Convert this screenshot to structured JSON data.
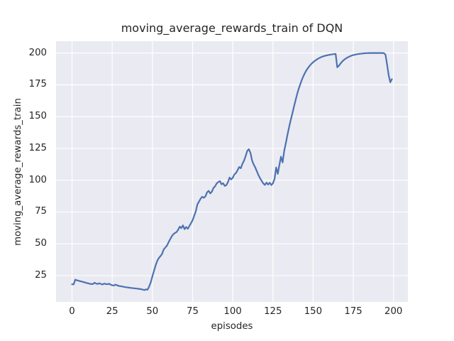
{
  "chart_data": {
    "type": "line",
    "title": "moving_average_rewards_train of DQN",
    "xlabel": "episodes",
    "ylabel": "moving_average_rewards_train",
    "x_ticks": [
      0,
      25,
      50,
      75,
      100,
      125,
      150,
      175,
      200
    ],
    "y_ticks": [
      25,
      50,
      75,
      100,
      125,
      150,
      175,
      200
    ],
    "xlim": [
      -9.95,
      208.95
    ],
    "ylim": [
      4.3,
      209.3
    ],
    "grid": true,
    "legend": null,
    "plot_bg_color": "#eaeaf2",
    "grid_color": "#ffffff",
    "line_color": "#4c72b0",
    "text_color": "#262626",
    "series": [
      {
        "name": "moving_average_rewards_train",
        "x_start": 0,
        "x_step": 1,
        "y": [
          18.2,
          18.1,
          21.8,
          21.3,
          21.0,
          20.6,
          20.3,
          20.0,
          19.6,
          19.2,
          18.9,
          18.6,
          18.3,
          18.4,
          19.4,
          18.7,
          18.4,
          19.0,
          18.4,
          18.0,
          18.7,
          18.4,
          18.2,
          18.6,
          17.9,
          17.4,
          17.2,
          17.9,
          17.4,
          16.9,
          16.7,
          16.5,
          16.2,
          16.0,
          15.8,
          15.6,
          15.4,
          15.3,
          15.1,
          15.0,
          14.8,
          14.7,
          14.5,
          14.3,
          14.0,
          13.6,
          14.2,
          13.9,
          16.5,
          19.8,
          24.5,
          28.8,
          33.0,
          36.5,
          38.8,
          40.3,
          42.0,
          45.5,
          47.0,
          48.5,
          51.0,
          53.5,
          55.8,
          57.5,
          58.5,
          59.2,
          61.0,
          63.5,
          62.3,
          64.5,
          61.5,
          63.2,
          61.8,
          64.0,
          66.2,
          68.5,
          72.0,
          75.5,
          81.0,
          83.2,
          85.5,
          87.0,
          86.2,
          87.3,
          90.5,
          91.6,
          89.6,
          91.0,
          94.0,
          95.2,
          97.5,
          98.6,
          99.3,
          96.8,
          97.6,
          95.5,
          96.1,
          98.5,
          102.1,
          100.6,
          102.0,
          104.6,
          105.6,
          107.9,
          110.4,
          109.4,
          112.9,
          115.4,
          118.9,
          123.0,
          124.4,
          121.5,
          115.6,
          112.4,
          110.0,
          107.0,
          104.0,
          101.5,
          99.4,
          97.5,
          96.3,
          98.1,
          96.6,
          98.0,
          96.2,
          97.6,
          101.0,
          110.0,
          105.0,
          112.0,
          118.5,
          114.0,
          123.0,
          129.0,
          135.5,
          141.5,
          147.0,
          152.0,
          157.5,
          162.5,
          167.5,
          171.8,
          175.5,
          179.0,
          182.0,
          184.6,
          186.8,
          188.6,
          190.2,
          191.6,
          192.8,
          193.8,
          194.7,
          195.5,
          196.2,
          196.8,
          197.3,
          197.7,
          198.0,
          198.3,
          198.6,
          198.8,
          199.0,
          199.2,
          199.3,
          188.8,
          190.0,
          191.7,
          193.2,
          194.4,
          195.4,
          196.2,
          196.9,
          197.5,
          198.0,
          198.4,
          198.7,
          199.0,
          199.2,
          199.4,
          199.5,
          199.7,
          199.8,
          199.9,
          199.9,
          200.0,
          200.0,
          200.0,
          200.0,
          200.0,
          200.0,
          200.0,
          200.0,
          200.0,
          199.9,
          198.8,
          191.0,
          182.5,
          177.0,
          179.5
        ]
      }
    ]
  }
}
